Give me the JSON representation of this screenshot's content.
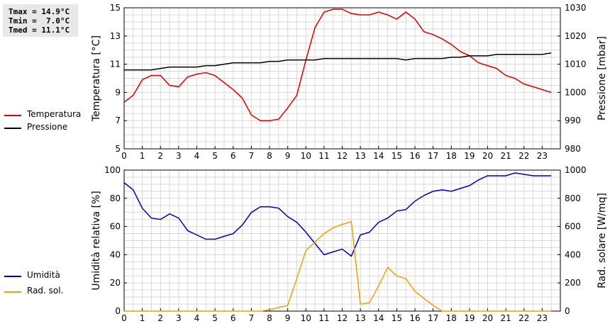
{
  "stats": {
    "tmax": "Tmax = 14.9°C",
    "tmin": "Tmin =  7.0°C",
    "tmed": "Tmed = 11.1°C"
  },
  "legend_top": [
    {
      "label": "Temperatura",
      "color": "#dd0000"
    },
    {
      "label": "Pressione",
      "color": "#000000"
    }
  ],
  "legend_bottom": [
    {
      "label": "Umidità",
      "color": "#0000bb"
    },
    {
      "label": "Rad. sol.",
      "color": "#f0a000"
    }
  ],
  "chart_data": [
    {
      "type": "line",
      "ylabel": "Temperatura [°C]",
      "y2label": "Pressione [mbar]",
      "xlim": [
        0,
        24
      ],
      "ylim": [
        5,
        15
      ],
      "y2lim": [
        980,
        1030
      ],
      "xticks": [
        0,
        1,
        2,
        3,
        4,
        5,
        6,
        7,
        8,
        9,
        10,
        11,
        12,
        13,
        14,
        15,
        16,
        17,
        18,
        19,
        20,
        21,
        22,
        23
      ],
      "yticks": [
        5,
        7,
        9,
        11,
        13,
        15
      ],
      "y2ticks": [
        980,
        990,
        1000,
        1010,
        1020,
        1030
      ],
      "grid": true,
      "series": [
        {
          "name": "Temperatura",
          "axis": "left",
          "color": "#dd0000",
          "x": [
            0,
            0.5,
            1,
            1.5,
            2,
            2.5,
            3,
            3.5,
            4,
            4.5,
            5,
            5.5,
            6,
            6.5,
            7,
            7.5,
            8,
            8.5,
            9,
            9.5,
            10,
            10.5,
            11,
            11.5,
            12,
            12.5,
            13,
            13.5,
            14,
            14.5,
            15,
            15.5,
            16,
            16.5,
            17,
            17.5,
            18,
            18.5,
            19,
            19.5,
            20,
            20.5,
            21,
            21.5,
            22,
            22.5,
            23,
            23.5
          ],
          "values": [
            8.3,
            8.8,
            9.9,
            10.2,
            10.2,
            9.5,
            9.4,
            10.1,
            10.3,
            10.4,
            10.2,
            9.7,
            9.2,
            8.6,
            7.4,
            7.0,
            7.0,
            7.1,
            7.9,
            8.8,
            11.3,
            13.6,
            14.7,
            14.9,
            14.9,
            14.6,
            14.5,
            14.5,
            14.7,
            14.5,
            14.2,
            14.7,
            14.2,
            13.3,
            13.1,
            12.8,
            12.4,
            11.9,
            11.6,
            11.1,
            10.9,
            10.7,
            10.2,
            10.0,
            9.6,
            9.4,
            9.2,
            9.0
          ]
        },
        {
          "name": "Pressione",
          "axis": "right",
          "color": "#000000",
          "x": [
            0,
            0.5,
            1,
            1.5,
            2,
            2.5,
            3,
            3.5,
            4,
            4.5,
            5,
            5.5,
            6,
            6.5,
            7,
            7.5,
            8,
            8.5,
            9,
            9.5,
            10,
            10.5,
            11,
            11.5,
            12,
            12.5,
            13,
            13.5,
            14,
            14.5,
            15,
            15.5,
            16,
            16.5,
            17,
            17.5,
            18,
            18.5,
            19,
            19.5,
            20,
            20.5,
            21,
            21.5,
            22,
            22.5,
            23,
            23.5
          ],
          "values": [
            1008,
            1008,
            1008,
            1008,
            1008.5,
            1009,
            1009,
            1009,
            1009,
            1009.5,
            1009.5,
            1010,
            1010.5,
            1010.5,
            1010.5,
            1010.5,
            1011,
            1011,
            1011.5,
            1011.5,
            1011.5,
            1011.5,
            1012,
            1012,
            1012,
            1012,
            1012,
            1012,
            1012,
            1012,
            1012,
            1011.5,
            1012,
            1012,
            1012,
            1012,
            1012.5,
            1012.5,
            1013,
            1013,
            1013,
            1013.5,
            1013.5,
            1013.5,
            1013.5,
            1013.5,
            1013.5,
            1014
          ]
        }
      ]
    },
    {
      "type": "line",
      "ylabel": "Umidità relativa [%]",
      "y2label": "Rad. solare [W/mq]",
      "xlim": [
        0,
        24
      ],
      "ylim": [
        0,
        100
      ],
      "y2lim": [
        0,
        1000
      ],
      "xticks": [
        0,
        1,
        2,
        3,
        4,
        5,
        6,
        7,
        8,
        9,
        10,
        11,
        12,
        13,
        14,
        15,
        16,
        17,
        18,
        19,
        20,
        21,
        22,
        23
      ],
      "yticks": [
        0,
        20,
        40,
        60,
        80,
        100
      ],
      "y2ticks": [
        0,
        200,
        400,
        600,
        800,
        1000
      ],
      "grid": true,
      "series": [
        {
          "name": "Umidità",
          "axis": "left",
          "color": "#0000bb",
          "x": [
            0,
            0.5,
            1,
            1.5,
            2,
            2.5,
            3,
            3.5,
            4,
            4.5,
            5,
            5.5,
            6,
            6.5,
            7,
            7.5,
            8,
            8.5,
            9,
            9.5,
            10,
            10.5,
            11,
            11.5,
            12,
            12.5,
            13,
            13.5,
            14,
            14.5,
            15,
            15.5,
            16,
            16.5,
            17,
            17.5,
            18,
            18.5,
            19,
            19.5,
            20,
            20.5,
            21,
            21.5,
            22,
            22.5,
            23,
            23.5
          ],
          "values": [
            91,
            86,
            73,
            66,
            65,
            69,
            66,
            57,
            54,
            51,
            51,
            53,
            55,
            61,
            70,
            74,
            74,
            73,
            67,
            63,
            56,
            48,
            40,
            42,
            44,
            39,
            54,
            56,
            63,
            66,
            71,
            72,
            78,
            82,
            85,
            86,
            85,
            87,
            89,
            93,
            96,
            96,
            96,
            98,
            97,
            96,
            96,
            96
          ]
        },
        {
          "name": "Rad. sol.",
          "axis": "right",
          "color": "#f0a000",
          "x": [
            0,
            0.5,
            1,
            1.5,
            2,
            2.5,
            3,
            3.5,
            4,
            4.5,
            5,
            5.5,
            6,
            6.5,
            7,
            7.5,
            8,
            8.5,
            9,
            9.5,
            10,
            10.5,
            11,
            11.5,
            12,
            12.5,
            13,
            13.5,
            14,
            14.5,
            15,
            15.5,
            16,
            16.5,
            17,
            17.5,
            18,
            18.5,
            19,
            19.5,
            20,
            20.5,
            21,
            21.5,
            22,
            22.5,
            23,
            23.5
          ],
          "values": [
            0,
            0,
            0,
            0,
            0,
            0,
            0,
            0,
            0,
            0,
            0,
            0,
            0,
            0,
            0,
            0,
            10,
            25,
            40,
            230,
            430,
            490,
            550,
            590,
            615,
            635,
            50,
            60,
            180,
            310,
            250,
            230,
            140,
            90,
            40,
            0,
            0,
            0,
            0,
            0,
            0,
            0,
            0,
            0,
            0,
            0,
            0,
            0
          ]
        }
      ]
    }
  ]
}
